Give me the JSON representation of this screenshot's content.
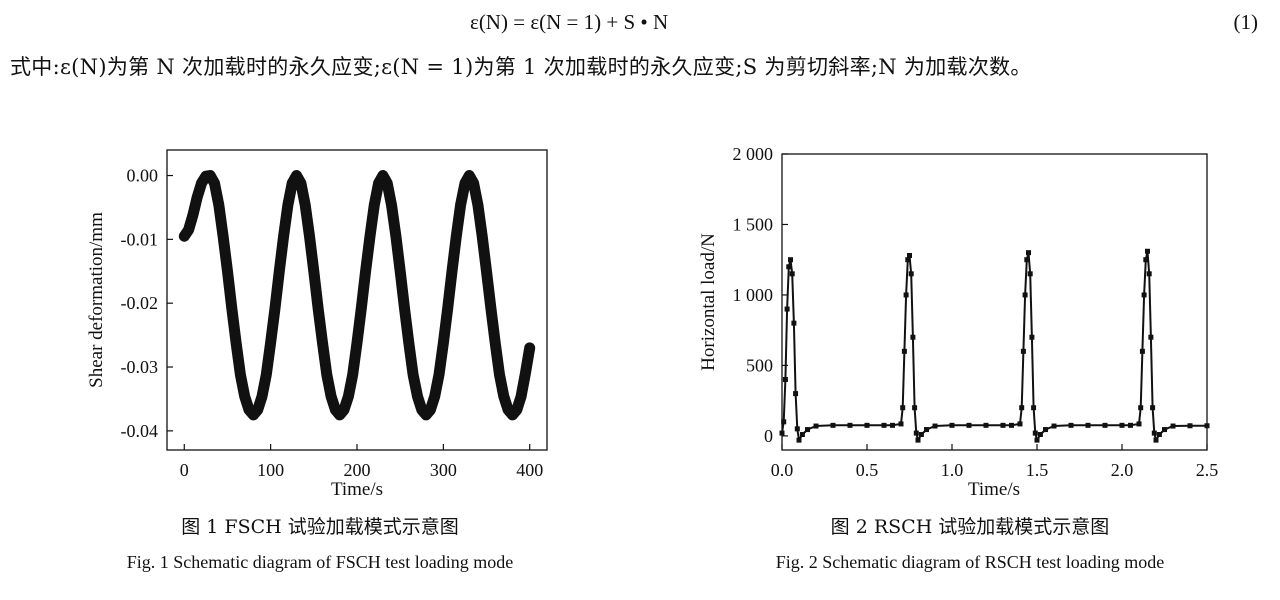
{
  "equation": {
    "text": "ε(N) = ε(N = 1) + S • N",
    "number": "(1)"
  },
  "paragraph": "式中:ε(N)为第 N 次加载时的永久应变;ε(N = 1)为第 1 次加载时的永久应变;S 为剪切斜率;N 为加载次数。",
  "figures": [
    {
      "caption_cn": "图 1 FSCH 试验加载模式示意图",
      "caption_en": "Fig. 1 Schematic diagram of FSCH test loading mode"
    },
    {
      "caption_cn": "图 2 RSCH 试验加载模式示意图",
      "caption_en": "Fig. 2 Schematic diagram of RSCH test loading mode"
    }
  ],
  "chart_data": [
    {
      "type": "line",
      "xlabel": "Time/s",
      "ylabel": "Shear deformation/mm",
      "xlim": [
        -20,
        420
      ],
      "ylim": [
        -0.043,
        0.004
      ],
      "x_ticks": [
        "0",
        "100",
        "200",
        "300",
        "400"
      ],
      "x_tick_values": [
        0,
        100,
        200,
        300,
        400
      ],
      "y_ticks": [
        "0.00",
        "-0.01",
        "-0.02",
        "-0.03",
        "-0.04"
      ],
      "y_tick_values": [
        0,
        -0.01,
        -0.02,
        -0.03,
        -0.04
      ],
      "series": [
        {
          "x": [
            0,
            5,
            10,
            15,
            20,
            25,
            30,
            35,
            40,
            45,
            50,
            55,
            60,
            65,
            70,
            75,
            80,
            85,
            90,
            95,
            100,
            105,
            110,
            115,
            120,
            125,
            130,
            135,
            140,
            145,
            150,
            155,
            160,
            165,
            170,
            175,
            180,
            185,
            190,
            195,
            200,
            205,
            210,
            215,
            220,
            225,
            230,
            235,
            240,
            245,
            250,
            255,
            260,
            265,
            270,
            275,
            280,
            285,
            290,
            295,
            300,
            305,
            310,
            315,
            320,
            325,
            330,
            335,
            340,
            345,
            350,
            355,
            360,
            365,
            370,
            375,
            380,
            385,
            390,
            395,
            400
          ],
          "values": [
            -0.0095,
            -0.0085,
            -0.0062,
            -0.0034,
            -0.0012,
            -0.0001,
            0.0,
            -0.0012,
            -0.0046,
            -0.0095,
            -0.015,
            -0.0208,
            -0.0262,
            -0.0312,
            -0.0346,
            -0.0367,
            -0.0375,
            -0.0367,
            -0.0346,
            -0.0312,
            -0.0262,
            -0.0208,
            -0.015,
            -0.0095,
            -0.0046,
            -0.0012,
            0.0,
            -0.0012,
            -0.0046,
            -0.0095,
            -0.015,
            -0.0208,
            -0.0262,
            -0.0312,
            -0.0346,
            -0.0367,
            -0.0375,
            -0.0367,
            -0.0346,
            -0.0312,
            -0.0262,
            -0.0208,
            -0.015,
            -0.0095,
            -0.0046,
            -0.0012,
            0.0,
            -0.0012,
            -0.0046,
            -0.0095,
            -0.015,
            -0.0208,
            -0.0262,
            -0.0312,
            -0.0346,
            -0.0367,
            -0.0375,
            -0.0367,
            -0.0346,
            -0.0312,
            -0.0262,
            -0.0208,
            -0.015,
            -0.0095,
            -0.0046,
            -0.0012,
            0.0,
            -0.0012,
            -0.0046,
            -0.0095,
            -0.015,
            -0.0208,
            -0.0262,
            -0.0312,
            -0.0346,
            -0.0367,
            -0.0375,
            -0.0367,
            -0.0346,
            -0.031,
            -0.027
          ]
        }
      ],
      "grid": false,
      "legend": false
    },
    {
      "type": "line",
      "xlabel": "Time/s",
      "ylabel": "Horizontal load/N",
      "xlim": [
        0,
        2.5
      ],
      "ylim": [
        -100,
        2000
      ],
      "x_ticks": [
        "0.0",
        "0.5",
        "1.0",
        "1.5",
        "2.0",
        "2.5"
      ],
      "x_tick_values": [
        0,
        0.5,
        1.0,
        1.5,
        2.0,
        2.5
      ],
      "y_ticks": [
        "2 000",
        "1 500",
        "1 000",
        "500",
        "0"
      ],
      "y_tick_values": [
        2000,
        1500,
        1000,
        500,
        0
      ],
      "series": [
        {
          "x": [
            0,
            0.01,
            0.02,
            0.03,
            0.04,
            0.05,
            0.06,
            0.07,
            0.08,
            0.09,
            0.1,
            0.12,
            0.15,
            0.2,
            0.3,
            0.4,
            0.5,
            0.6,
            0.65,
            0.7,
            0.71,
            0.72,
            0.73,
            0.74,
            0.75,
            0.76,
            0.77,
            0.78,
            0.79,
            0.8,
            0.82,
            0.85,
            0.9,
            1.0,
            1.1,
            1.2,
            1.3,
            1.35,
            1.4,
            1.41,
            1.42,
            1.43,
            1.44,
            1.45,
            1.46,
            1.47,
            1.48,
            1.49,
            1.5,
            1.52,
            1.55,
            1.6,
            1.7,
            1.8,
            1.9,
            2.0,
            2.05,
            2.1,
            2.11,
            2.12,
            2.13,
            2.14,
            2.15,
            2.16,
            2.17,
            2.18,
            2.19,
            2.2,
            2.22,
            2.25,
            2.3,
            2.4,
            2.5
          ],
          "values": [
            20,
            100,
            400,
            900,
            1200,
            1250,
            1150,
            800,
            300,
            50,
            -30,
            10,
            45,
            70,
            75,
            75,
            75,
            75,
            75,
            85,
            200,
            600,
            1000,
            1250,
            1280,
            1150,
            700,
            200,
            20,
            -30,
            10,
            45,
            70,
            75,
            75,
            75,
            75,
            75,
            85,
            200,
            600,
            1000,
            1250,
            1300,
            1150,
            700,
            200,
            20,
            -30,
            10,
            45,
            70,
            75,
            75,
            75,
            75,
            75,
            85,
            200,
            600,
            1000,
            1250,
            1310,
            1150,
            700,
            200,
            20,
            -30,
            10,
            45,
            70,
            72,
            72
          ]
        }
      ],
      "grid": false,
      "legend": false
    }
  ]
}
